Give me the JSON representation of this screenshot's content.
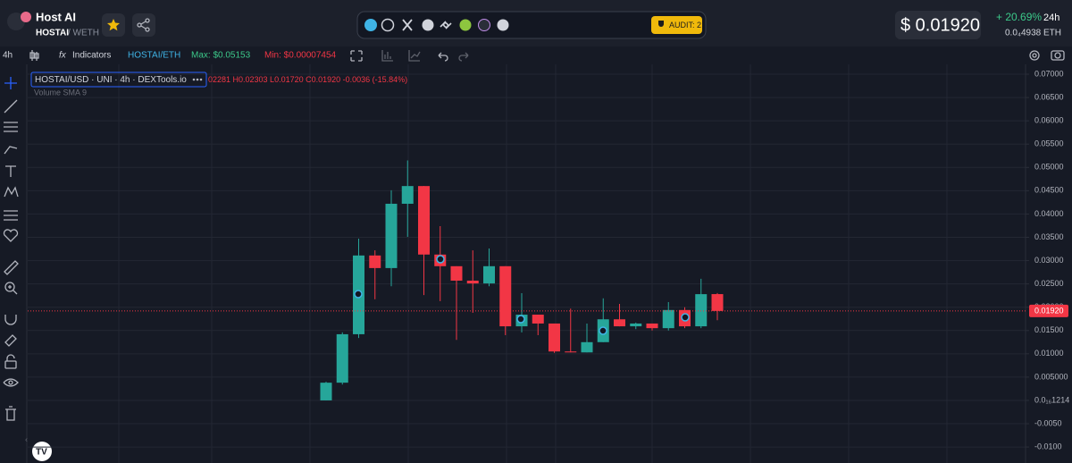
{
  "header": {
    "token_name": "Host AI",
    "pair_base": "HOSTAI",
    "pair_quote": "/ WETH",
    "audit": "AUDIT: 2",
    "price": "$ 0.01920",
    "change": "+ 20.69%",
    "change_period": "24h",
    "price_eth": "0.0₄4938",
    "eth": "ETH"
  },
  "toolbar": {
    "interval": "4h",
    "indicators": "Indicators",
    "pair": "HOSTAI/ETH",
    "max": "Max: $0.05153",
    "min": "Min: $0.00007454"
  },
  "chart_data": {
    "type": "candlestick",
    "legend_title": "HOSTAI/USD · UNI · 4h · DEXTools.io",
    "ohlc_text": "02281 H0.02303 L0.01720 C0.01920 -0.0036 (-15.84%)",
    "indicator": "Volume SMA 9",
    "open": [
      0.0,
      0.0038,
      0.0142,
      0.0311,
      0.0284,
      0.0422,
      0.046,
      0.0313,
      0.0288,
      0.0257,
      0.0251,
      0.0288,
      0.0159,
      0.0184,
      0.0165,
      0.0105,
      0.0103,
      0.0125,
      0.0174,
      0.0159,
      0.0165,
      0.0155,
      0.0194,
      0.0159,
      0.02281
    ],
    "high": [
      0.004,
      0.0146,
      0.0347,
      0.0322,
      0.0451,
      0.0515,
      0.046,
      0.0374,
      0.0288,
      0.0322,
      0.0326,
      0.0288,
      0.023,
      0.0184,
      0.0165,
      0.0197,
      0.0165,
      0.0219,
      0.0207,
      0.0167,
      0.0165,
      0.0211,
      0.02,
      0.0261,
      0.02303
    ],
    "low": [
      0.0,
      0.0034,
      0.0134,
      0.0217,
      0.0245,
      0.0351,
      0.0226,
      0.0213,
      0.013,
      0.0188,
      0.0245,
      0.014,
      0.0146,
      0.014,
      0.0102,
      0.0103,
      0.0103,
      0.0125,
      0.0159,
      0.0153,
      0.015,
      0.015,
      0.0155,
      0.0155,
      0.0172
    ],
    "close": [
      0.0038,
      0.0142,
      0.0311,
      0.0284,
      0.0422,
      0.046,
      0.0313,
      0.0288,
      0.0257,
      0.0251,
      0.0288,
      0.0159,
      0.0184,
      0.0165,
      0.0105,
      0.0103,
      0.0125,
      0.0174,
      0.0159,
      0.0165,
      0.0155,
      0.0194,
      0.0159,
      0.0228,
      0.0192
    ],
    "up_color": "#26a69a",
    "down_color": "#f23645",
    "ylim": [
      -0.0119,
      0.0725
    ],
    "yticks": [
      {
        "value": 0.07,
        "label": "0.07000"
      },
      {
        "value": 0.065,
        "label": "0.06500"
      },
      {
        "value": 0.06,
        "label": "0.06000"
      },
      {
        "value": 0.055,
        "label": "0.05500"
      },
      {
        "value": 0.05,
        "label": "0.05000"
      },
      {
        "value": 0.045,
        "label": "0.04500"
      },
      {
        "value": 0.04,
        "label": "0.04000"
      },
      {
        "value": 0.035,
        "label": "0.03500"
      },
      {
        "value": 0.03,
        "label": "0.03000"
      },
      {
        "value": 0.025,
        "label": "0.02500"
      },
      {
        "value": 0.02,
        "label": "0.02000"
      },
      {
        "value": 0.015,
        "label": "0.01500"
      },
      {
        "value": 0.01,
        "label": "0.01000"
      },
      {
        "value": 0.005,
        "label": "0.005000"
      },
      {
        "value": 1.214e-17,
        "label": "0.0₁₆1214"
      },
      {
        "value": -0.005,
        "label": "-0.0050"
      },
      {
        "value": -0.01,
        "label": "-0.0100"
      }
    ],
    "price_line": {
      "value": 0.0192,
      "label": "0.01920"
    },
    "grid": true
  }
}
